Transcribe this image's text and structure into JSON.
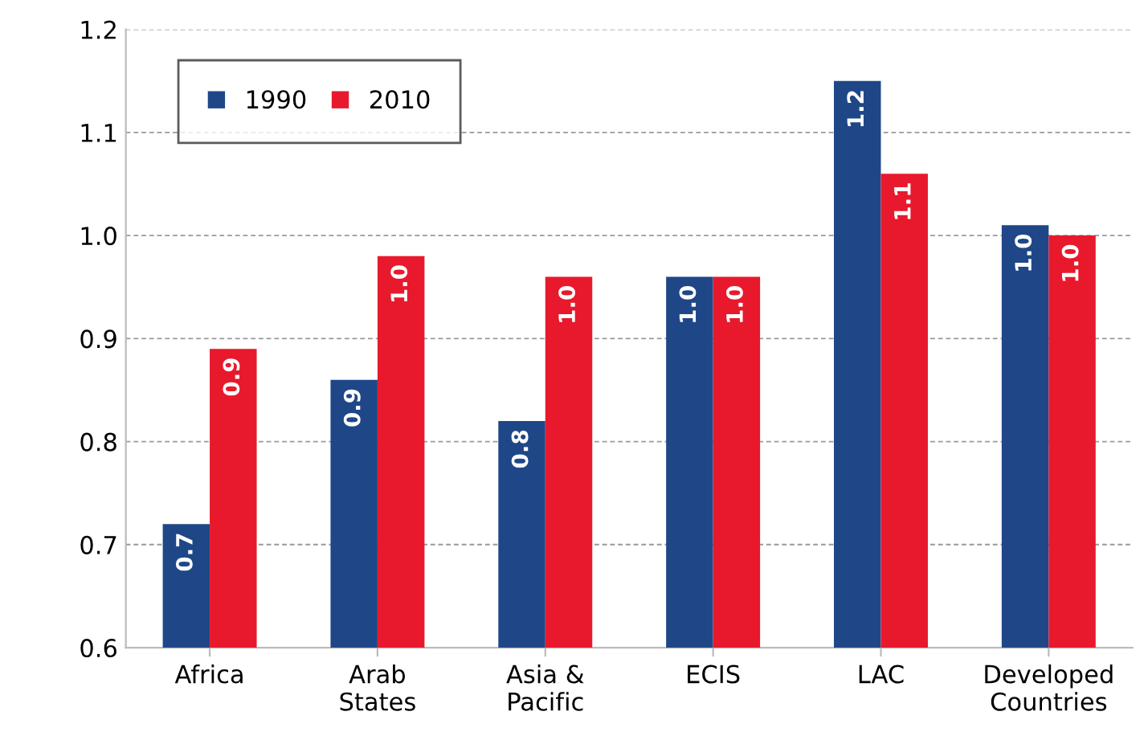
{
  "chart_data": {
    "type": "bar",
    "categories": [
      "Africa",
      "Arab\nStates",
      "Asia &\nPacific",
      "ECIS",
      "LAC",
      "Developed\nCountries"
    ],
    "series": [
      {
        "name": "1990",
        "color": "#1f4788",
        "values": [
          0.72,
          0.86,
          0.82,
          0.96,
          1.15,
          1.01
        ],
        "value_labels": [
          "0.7",
          "0.9",
          "0.8",
          "1.0",
          "1.2",
          "1.0"
        ]
      },
      {
        "name": "2010",
        "color": "#e8192c",
        "values": [
          0.89,
          0.98,
          0.96,
          0.96,
          1.06,
          1.0
        ],
        "value_labels": [
          "0.9",
          "1.0",
          "1.0",
          "1.0",
          "1.1",
          "1.0"
        ]
      }
    ],
    "ylim": [
      0.6,
      1.2
    ],
    "yticks": [
      "0.6",
      "0.7",
      "0.8",
      "0.9",
      "1.0",
      "1.1",
      "1.2"
    ],
    "grid": "y",
    "legend": "top left"
  }
}
